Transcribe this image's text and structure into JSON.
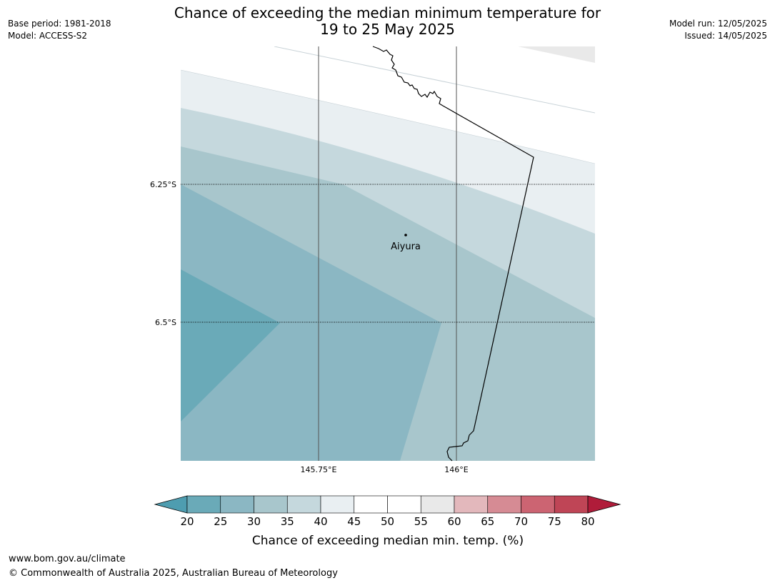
{
  "header": {
    "title_line1": "Chance of exceeding the median minimum temperature for",
    "title_line2": "19 to 25 May 2025",
    "base_period": "Base period: 1981-2018",
    "model": "Model: ACCESS-S2",
    "model_run": "Model run: 12/05/2025",
    "issued": "Issued: 14/05/2025"
  },
  "map": {
    "lat_labels": [
      "6.25°S",
      "6.5°S"
    ],
    "lon_labels": [
      "145.75°E",
      "146°E"
    ],
    "place": {
      "name": "Aiyura"
    }
  },
  "legend": {
    "title": "Chance of exceeding median min. temp. (%)",
    "ticks": [
      "20",
      "25",
      "30",
      "35",
      "40",
      "45",
      "50",
      "55",
      "60",
      "65",
      "70",
      "75",
      "80"
    ],
    "colors": [
      "#6aaab8",
      "#8bb7c3",
      "#a8c6cc",
      "#c5d8dd",
      "#e9eff2",
      "#ffffff",
      "#ffffff",
      "#e9e9e9",
      "#e3b8bc",
      "#d68b94",
      "#cc6472",
      "#bf4556"
    ],
    "under_color": "#4e9db0",
    "over_color": "#b01c3a"
  },
  "footer": {
    "url": "www.bom.gov.au/climate",
    "copyright": "© Commonwealth of Australia 2025, Australian Bureau of Meteorology"
  }
}
